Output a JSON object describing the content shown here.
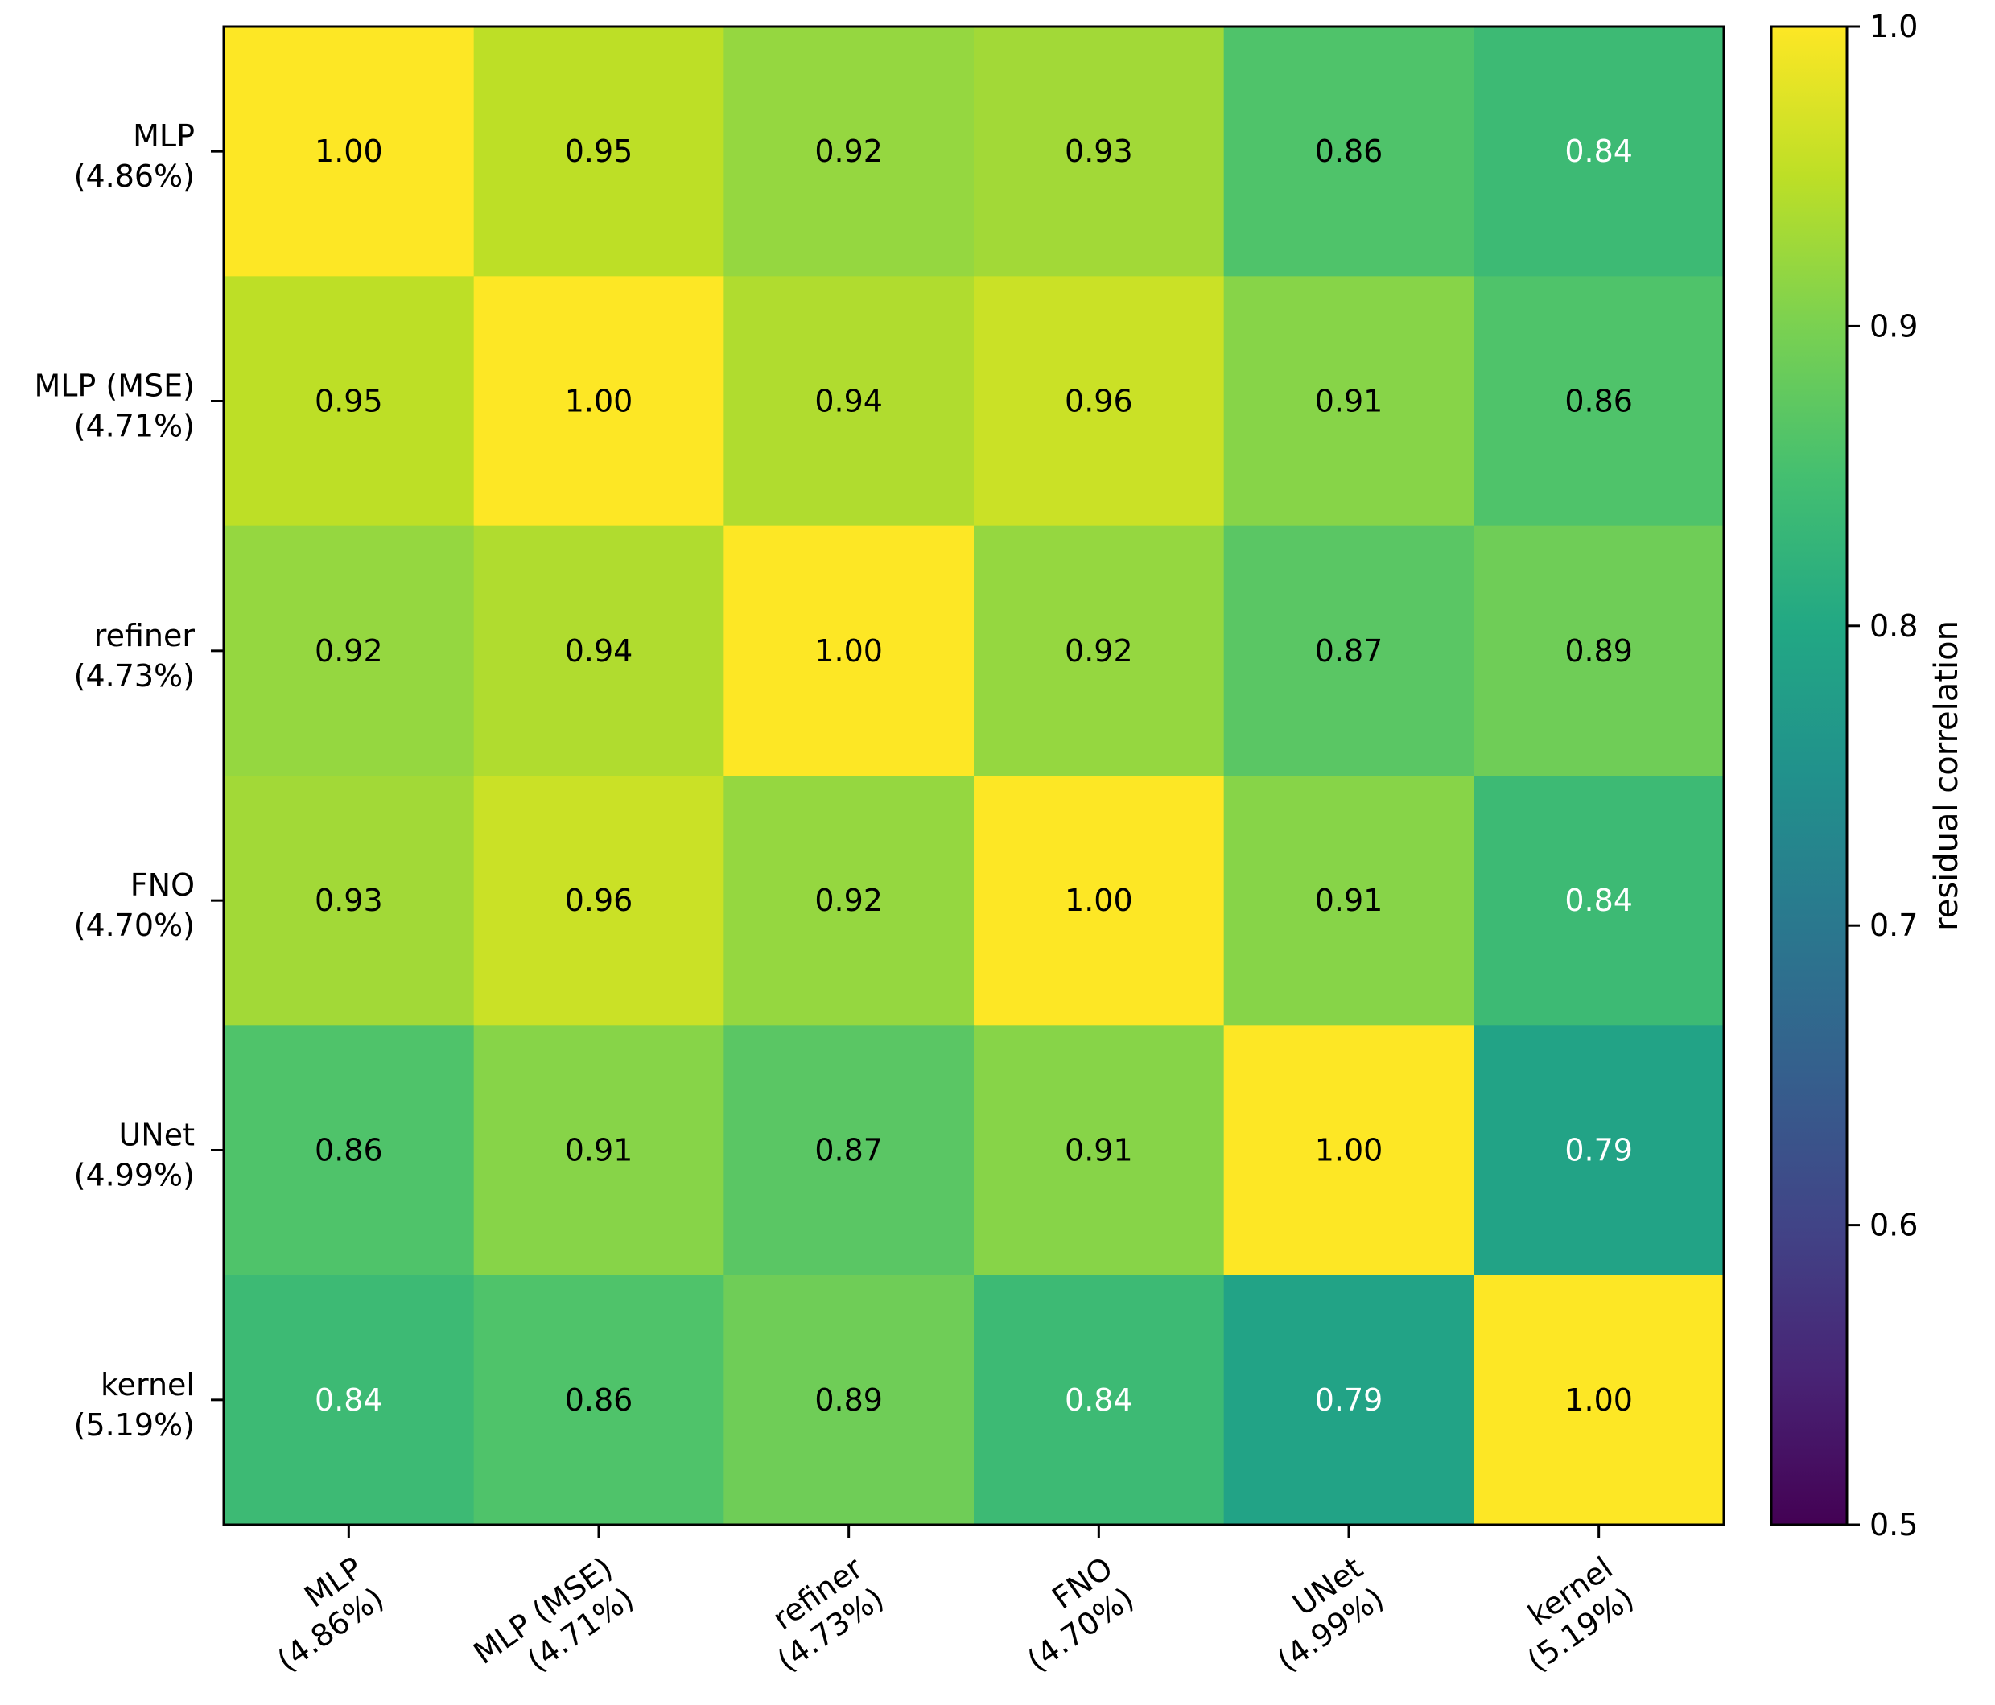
{
  "chart_data": {
    "type": "heatmap",
    "title": "",
    "xlabel": "",
    "ylabel": "",
    "rows": [
      {
        "name": "MLP",
        "sub": "(4.86%)"
      },
      {
        "name": "MLP (MSE)",
        "sub": "(4.71%)"
      },
      {
        "name": "refiner",
        "sub": "(4.73%)"
      },
      {
        "name": "FNO",
        "sub": "(4.70%)"
      },
      {
        "name": "UNet",
        "sub": "(4.99%)"
      },
      {
        "name": "kernel",
        "sub": "(5.19%)"
      }
    ],
    "columns": [
      {
        "name": "MLP",
        "sub": "(4.86%)"
      },
      {
        "name": "MLP (MSE)",
        "sub": "(4.71%)"
      },
      {
        "name": "refiner",
        "sub": "(4.73%)"
      },
      {
        "name": "FNO",
        "sub": "(4.70%)"
      },
      {
        "name": "UNet",
        "sub": "(4.99%)"
      },
      {
        "name": "kernel",
        "sub": "(5.19%)"
      }
    ],
    "values": [
      [
        1.0,
        0.95,
        0.92,
        0.93,
        0.86,
        0.84
      ],
      [
        0.95,
        1.0,
        0.94,
        0.96,
        0.91,
        0.86
      ],
      [
        0.92,
        0.94,
        1.0,
        0.92,
        0.87,
        0.89
      ],
      [
        0.93,
        0.96,
        0.92,
        1.0,
        0.91,
        0.84
      ],
      [
        0.86,
        0.91,
        0.87,
        0.91,
        1.0,
        0.79
      ],
      [
        0.84,
        0.86,
        0.89,
        0.84,
        0.79,
        1.0
      ]
    ],
    "value_labels": [
      [
        "1.00",
        "0.95",
        "0.92",
        "0.93",
        "0.86",
        "0.84"
      ],
      [
        "0.95",
        "1.00",
        "0.94",
        "0.96",
        "0.91",
        "0.86"
      ],
      [
        "0.92",
        "0.94",
        "1.00",
        "0.92",
        "0.87",
        "0.89"
      ],
      [
        "0.93",
        "0.96",
        "0.92",
        "1.00",
        "0.91",
        "0.84"
      ],
      [
        "0.86",
        "0.91",
        "0.87",
        "0.91",
        "1.00",
        "0.79"
      ],
      [
        "0.84",
        "0.86",
        "0.89",
        "0.84",
        "0.79",
        "1.00"
      ]
    ],
    "colormap": "viridis",
    "colorbar": {
      "label": "residual correlation",
      "range": [
        0.5,
        1.0
      ],
      "ticks": [
        "0.5",
        "0.6",
        "0.7",
        "0.8",
        "0.9",
        "1.0"
      ]
    },
    "grid": false,
    "legend": "colorbar-right"
  }
}
